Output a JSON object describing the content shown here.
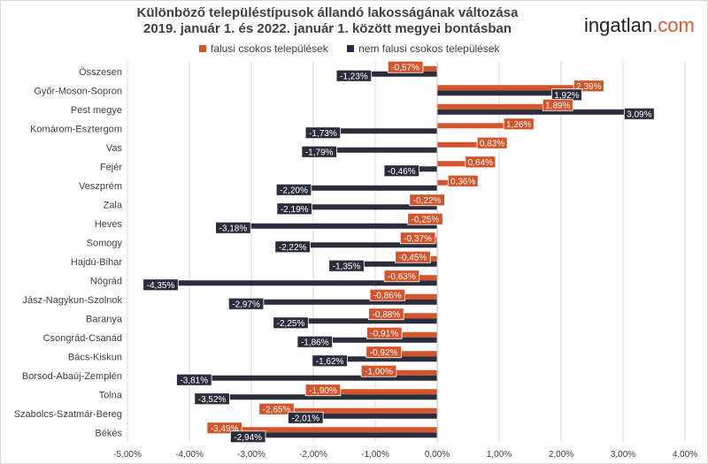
{
  "title": {
    "line1": "Különböző településtípusok állandó lakosságának változása",
    "line2": "2019. január 1. és 2022. január 1. között megyei bontásban"
  },
  "logo": {
    "name": "ingatlan",
    "dot": ".",
    "tld": "com"
  },
  "colors": {
    "falusi": "#d4552b",
    "nem_falusi": "#2b2d3c",
    "grid": "#d9d9d9",
    "axis": "#bfbfbf"
  },
  "chart_data": {
    "type": "bar",
    "orientation": "horizontal",
    "categories": [
      "Összesen",
      "Győr-Moson-Sopron",
      "Pest megye",
      "Komárom-Esztergom",
      "Vas",
      "Fejér",
      "Veszprém",
      "Zala",
      "Heves",
      "Somogy",
      "Hajdú-Bihar",
      "Nógrád",
      "Jász-Nagykun-Szolnok",
      "Baranya",
      "Csongrád-Csanád",
      "Bács-Kiskun",
      "Borsod-Abaúj-Zemplén",
      "Tolna",
      "Szabolcs-Szatmár-Bereg",
      "Békés"
    ],
    "series": [
      {
        "name": "falusi csokos települések",
        "values": [
          -0.57,
          2.39,
          1.89,
          1.26,
          0.83,
          0.64,
          0.36,
          -0.22,
          -0.25,
          -0.37,
          -0.45,
          -0.63,
          -0.86,
          -0.88,
          -0.91,
          -0.92,
          -1.0,
          -1.9,
          -2.65,
          -3.49
        ],
        "labels": [
          "-0,57%",
          "2,39%",
          "1,89%",
          "1,26%",
          "0,83%",
          "0,64%",
          "0,36%",
          "-0,22%",
          "-0,25%",
          "-0,37%",
          "-0,45%",
          "-0,63%",
          "-0,86%",
          "-0,88%",
          "-0,91%",
          "-0,92%",
          "-1,00%",
          "-1,90%",
          "-2,65%",
          "-3,49%"
        ]
      },
      {
        "name": "nem falusi csokos települések",
        "values": [
          -1.23,
          1.92,
          3.09,
          -1.73,
          -1.79,
          -0.46,
          -2.2,
          -2.19,
          -3.18,
          -2.22,
          -1.35,
          -4.35,
          -2.97,
          -2.25,
          -1.86,
          -1.62,
          -3.81,
          -3.52,
          -2.01,
          -2.94
        ],
        "labels": [
          "-1,23%",
          "1,92%",
          "3,09%",
          "-1,73%",
          "-1,79%",
          "-0,46%",
          "-2,20%",
          "-2,19%",
          "-3,18%",
          "-2,22%",
          "-1,35%",
          "-4,35%",
          "-2,97%",
          "-2,25%",
          "-1,86%",
          "-1,62%",
          "-3,81%",
          "-3,52%",
          "-2,01%",
          "-2,94%"
        ]
      }
    ],
    "xlim": [
      -5,
      4
    ],
    "xticks": [
      -5,
      -4,
      -3,
      -2,
      -1,
      0,
      1,
      2,
      3,
      4
    ],
    "xtick_labels": [
      "-5,00%",
      "-4,00%",
      "-3,00%",
      "-2,00%",
      "-1,00%",
      "0,00%",
      "1,00%",
      "2,00%",
      "3,00%",
      "4,00%"
    ],
    "grid": "vertical",
    "legend_position": "top"
  }
}
